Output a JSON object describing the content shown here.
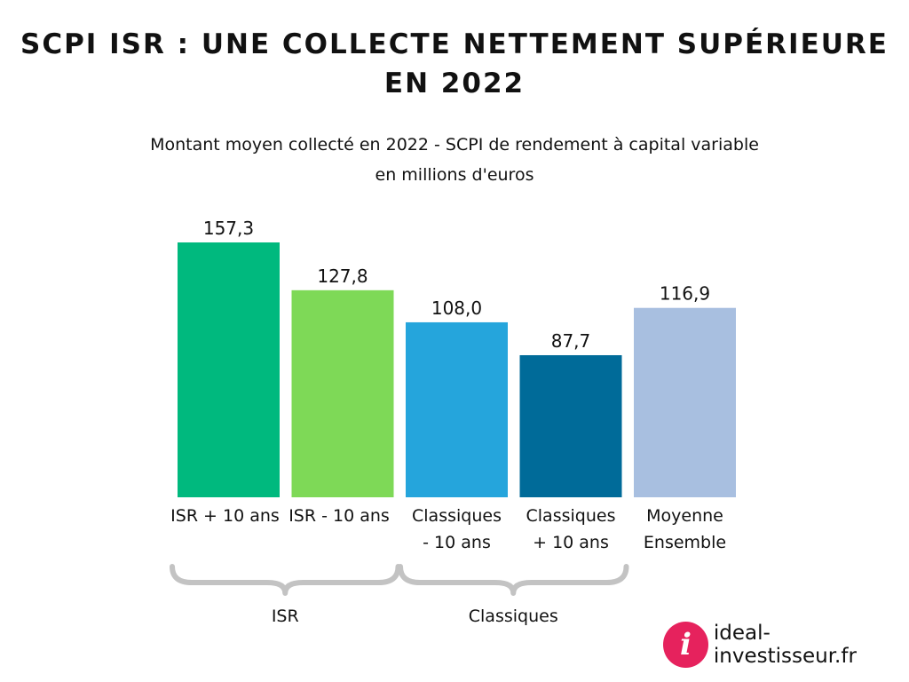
{
  "header": {
    "title_line1": "SCPI ISR : UNE COLLECTE NETTEMENT SUPÉRIEURE",
    "title_line2": "EN 2022",
    "subtitle_line1": "Montant moyen collecté en 2022 - SCPI de rendement à capital variable",
    "subtitle_line2": "en millions d'euros"
  },
  "chart_data": {
    "type": "bar",
    "title": "SCPI ISR : UNE COLLECTE NETTEMENT SUPÉRIEURE EN 2022",
    "subtitle": "Montant moyen collecté en 2022 - SCPI de rendement à capital variable en millions d'euros",
    "categories": [
      [
        "ISR + 10 ans"
      ],
      [
        "ISR - 10 ans"
      ],
      [
        "Classiques",
        "- 10 ans"
      ],
      [
        "Classiques",
        "+ 10 ans"
      ],
      [
        "Moyenne",
        "Ensemble"
      ]
    ],
    "values": [
      157.3,
      127.8,
      108.0,
      87.7,
      116.9
    ],
    "value_labels": [
      "157,3",
      "127,8",
      "108,0",
      "87,7",
      "116,9"
    ],
    "colors": [
      "#00b97e",
      "#7ed957",
      "#25a5dc",
      "#006b99",
      "#a8bfe0"
    ],
    "groups": [
      {
        "label": "ISR",
        "members": [
          0,
          1
        ]
      },
      {
        "label": "Classiques",
        "members": [
          2,
          3
        ]
      }
    ],
    "ylim": [
      0,
      157.3
    ],
    "grid": false,
    "legend": "none"
  },
  "brand": {
    "icon_letter": "i",
    "name": "ideal-investisseur.fr",
    "icon_color": "#e6225d"
  }
}
